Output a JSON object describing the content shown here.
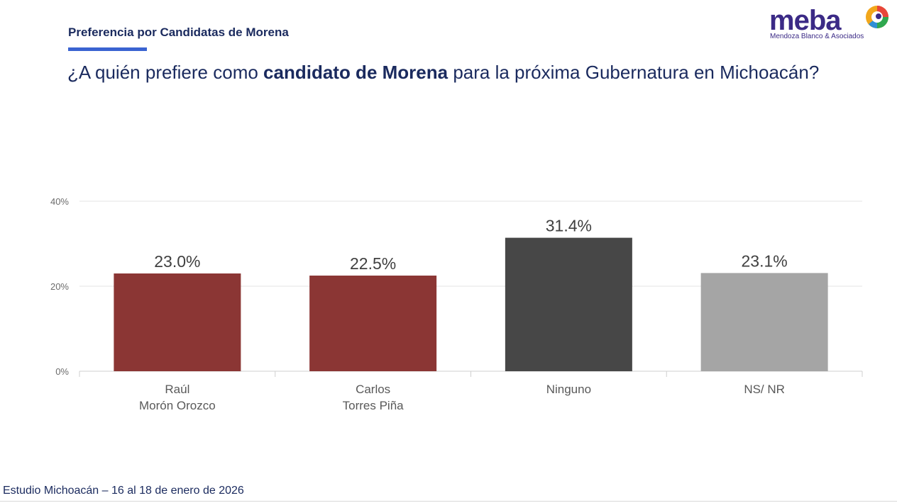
{
  "header": {
    "section_title": "Preferencia por Candidatas de Morena",
    "question_part1": "¿A quién prefiere como ",
    "question_bold": "candidato de Morena",
    "question_part2": " para la próxima Gubernatura en Michoacán?"
  },
  "logo": {
    "word": "meba",
    "subtitle": "Mendoza Blanco & Asociados",
    "colors": [
      "#f2a71b",
      "#e8463a",
      "#2fa84f",
      "#2f8fd6"
    ]
  },
  "chart_data": {
    "type": "bar",
    "categories": [
      [
        "Raúl",
        "Morón Orozco"
      ],
      [
        "Carlos",
        "Torres Piña"
      ],
      [
        "Ninguno"
      ],
      [
        "NS/ NR"
      ]
    ],
    "values": [
      23.0,
      22.5,
      31.4,
      23.1
    ],
    "value_labels": [
      "23.0%",
      "22.5%",
      "31.4%",
      "23.1%"
    ],
    "colors": [
      "#8b3634",
      "#8b3634",
      "#474747",
      "#a5a5a5"
    ],
    "ylim": [
      0,
      40
    ],
    "yticks": [
      0,
      20,
      40
    ],
    "ytick_labels": [
      "0%",
      "20%",
      "40%"
    ],
    "grid": true,
    "legend": "none"
  },
  "footer": {
    "text": "Estudio Michoacán – 16 al 18 de enero de 2026"
  }
}
